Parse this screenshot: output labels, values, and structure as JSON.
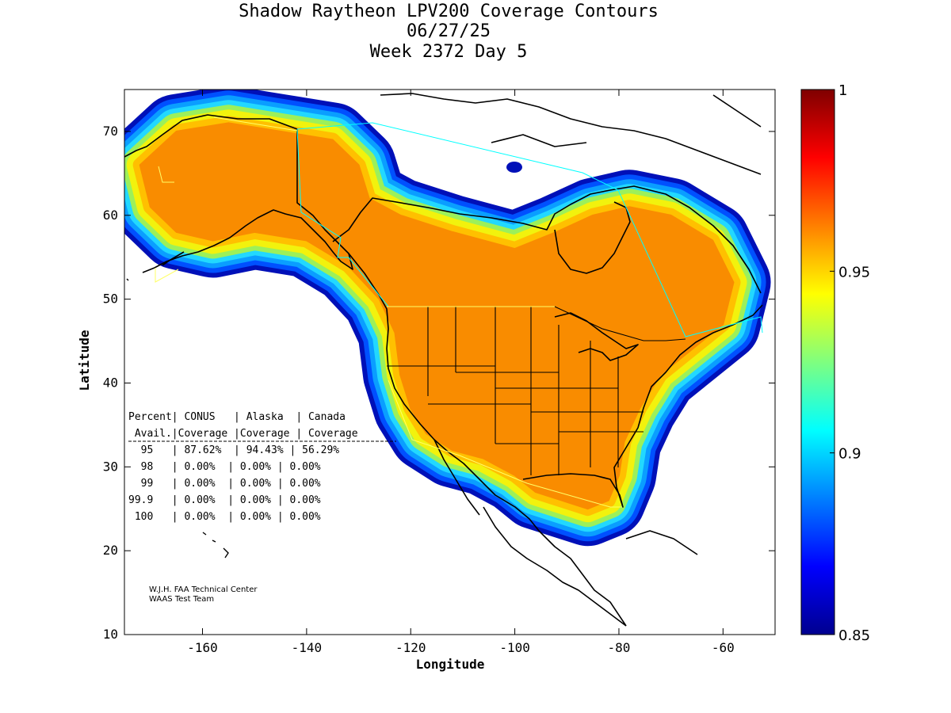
{
  "title": {
    "line1": "Shadow Raytheon LPV200 Coverage Contours",
    "line2": "06/27/25",
    "line3": "Week 2372 Day 5"
  },
  "axes": {
    "xlabel": "Longitude",
    "ylabel": "Latitude",
    "xlim": [
      -175,
      -50
    ],
    "ylim": [
      10,
      75
    ],
    "xticks": [
      -160,
      -140,
      -120,
      -100,
      -80,
      -60
    ],
    "xtick_labels": [
      "-160",
      "-140",
      "-120",
      "-100",
      "-80",
      "-60"
    ],
    "yticks": [
      10,
      20,
      30,
      40,
      50,
      60,
      70
    ],
    "ytick_labels": [
      "10",
      "20",
      "30",
      "40",
      "50",
      "60",
      "70"
    ]
  },
  "colorbar": {
    "ticks": [
      0.85,
      0.9,
      0.95,
      1
    ],
    "tick_labels": [
      "0.85",
      "0.9",
      "0.95",
      "1"
    ],
    "range": [
      0.85,
      1
    ]
  },
  "table": {
    "header1": "Percent| CONUS   | Alaska  | Canada",
    "header2": " Avail.|Coverage |Coverage | Coverage",
    "rows": [
      "  95   | 87.62%  | 94.43% | 56.29%",
      "  98   | 0.00%  | 0.00% | 0.00%",
      "  99   | 0.00%  | 0.00% | 0.00%",
      "99.9   | 0.00%  | 0.00% | 0.00%",
      " 100   | 0.00%  | 0.00% | 0.00%"
    ]
  },
  "credit": {
    "line1": "W.J.H. FAA Technical Center",
    "line2": "WAAS Test Team"
  },
  "colors": {
    "core": "#f98c00",
    "ring_0_95": "#ffc000",
    "ring_yellow": "#f2f20d",
    "ring_green": "#9cf05a",
    "ring_cyan": "#22d8ff",
    "ring_lightblue": "#0a9eff",
    "ring_blue": "#0050ff",
    "ring_darkblue": "#0010b8",
    "land_outline": "#000000",
    "service_area": "#00ffff",
    "service_area_yellow": "#ffff66"
  }
}
